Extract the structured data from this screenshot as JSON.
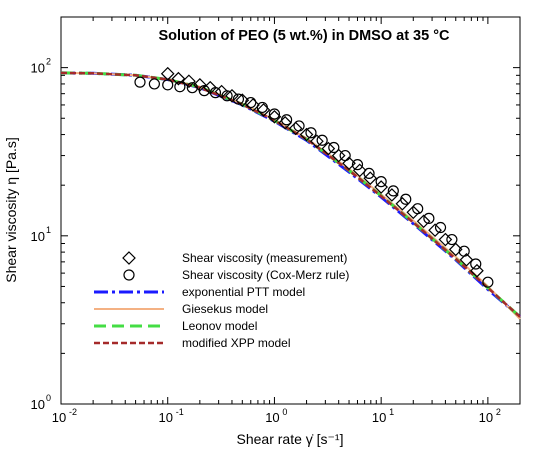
{
  "chart_data": {
    "type": "scatter",
    "title": "Solution of PEO (5 wt.%) in DMSO at 35 °C",
    "xlabel": "Shear rate γ̇ [s⁻¹]",
    "ylabel": "Shear viscosity η [Pa.s]",
    "x_scale": "log",
    "y_scale": "log",
    "xlim": [
      0.01,
      200
    ],
    "ylim": [
      1,
      200
    ],
    "x_ticks": [
      0.01,
      0.1,
      1,
      10,
      100
    ],
    "x_tick_labels": [
      "10",
      "10",
      "10",
      "10",
      "10"
    ],
    "x_tick_exponents": [
      "-2",
      "-1",
      "0",
      "1",
      "2"
    ],
    "y_ticks": [
      1,
      10,
      100
    ],
    "y_tick_labels": [
      "10",
      "10",
      "10"
    ],
    "y_tick_exponents": [
      "0",
      "1",
      "2"
    ],
    "grid": false,
    "legend_position": "bottom-left",
    "series": [
      {
        "name": "Shear viscosity (measurement)",
        "kind": "marker",
        "marker": "diamond",
        "color": "#000000",
        "points": [
          [
            0.1,
            92
          ],
          [
            0.126,
            86
          ],
          [
            0.158,
            83
          ],
          [
            0.2,
            79
          ],
          [
            0.25,
            76
          ],
          [
            0.32,
            72
          ],
          [
            0.4,
            68
          ],
          [
            0.5,
            64
          ],
          [
            0.63,
            60
          ],
          [
            0.79,
            56
          ],
          [
            1.0,
            51
          ],
          [
            1.26,
            47
          ],
          [
            1.58,
            43.5
          ],
          [
            2.0,
            40
          ],
          [
            2.5,
            36.5
          ],
          [
            3.2,
            33
          ],
          [
            4.0,
            30
          ],
          [
            5.0,
            27
          ],
          [
            6.3,
            24.5
          ],
          [
            7.9,
            22
          ],
          [
            10,
            19.5
          ],
          [
            12.6,
            17.5
          ],
          [
            15.8,
            15.5
          ],
          [
            20,
            13.8
          ],
          [
            25,
            12.2
          ],
          [
            32,
            10.8
          ],
          [
            40,
            9.5
          ],
          [
            50,
            8.3
          ],
          [
            63,
            7.2
          ],
          [
            79,
            6.2
          ]
        ]
      },
      {
        "name": "Shear viscosity (Cox-Merz rule)",
        "kind": "marker",
        "marker": "circle",
        "color": "#000000",
        "points": [
          [
            0.055,
            82
          ],
          [
            0.075,
            80
          ],
          [
            0.1,
            79
          ],
          [
            0.13,
            77
          ],
          [
            0.17,
            76
          ],
          [
            0.22,
            73
          ],
          [
            0.28,
            71
          ],
          [
            0.36,
            68
          ],
          [
            0.46,
            65
          ],
          [
            0.6,
            62
          ],
          [
            0.77,
            58
          ],
          [
            1.0,
            53
          ],
          [
            1.3,
            49
          ],
          [
            1.7,
            45
          ],
          [
            2.2,
            41
          ],
          [
            2.8,
            37
          ],
          [
            3.6,
            33.5
          ],
          [
            4.6,
            30
          ],
          [
            6.0,
            26.5
          ],
          [
            7.7,
            23.5
          ],
          [
            10,
            21
          ],
          [
            13,
            18.5
          ],
          [
            17,
            16.5
          ],
          [
            22,
            14.5
          ],
          [
            28,
            12.7
          ],
          [
            36,
            11.2
          ],
          [
            46,
            9.5
          ],
          [
            60,
            8.1
          ],
          [
            77,
            6.8
          ],
          [
            100,
            5.3
          ]
        ]
      },
      {
        "name": "exponential PTT model",
        "kind": "line",
        "color": "#1a1aff",
        "dash": "14,4,3,4",
        "width": 3,
        "x": [
          0.01,
          0.02,
          0.05,
          0.1,
          0.2,
          0.5,
          1,
          2,
          5,
          10,
          20,
          50,
          100,
          200
        ],
        "y": [
          93,
          92.5,
          90,
          85,
          76,
          60,
          48,
          37,
          24,
          17,
          11.8,
          7.2,
          4.8,
          3.3
        ]
      },
      {
        "name": "Giesekus model",
        "kind": "line",
        "color": "#f4b183",
        "dash": "",
        "width": 2,
        "x": [
          0.01,
          0.02,
          0.05,
          0.1,
          0.2,
          0.5,
          1,
          2,
          5,
          10,
          20,
          50,
          100,
          200
        ],
        "y": [
          93,
          92.5,
          90,
          85.5,
          77,
          61,
          49,
          38,
          25,
          17.6,
          12.3,
          7.5,
          5.0,
          3.2
        ]
      },
      {
        "name": "Leonov model",
        "kind": "line",
        "color": "#44dd44",
        "dash": "12,6",
        "width": 3,
        "x": [
          0.01,
          0.02,
          0.05,
          0.1,
          0.2,
          0.5,
          1,
          2,
          5,
          10,
          20,
          50,
          100,
          200
        ],
        "y": [
          93,
          92.5,
          90,
          85,
          76.5,
          60.5,
          48.5,
          37.5,
          24.5,
          17.3,
          12,
          7.3,
          4.9,
          3.3
        ]
      },
      {
        "name": "modified XPP model",
        "kind": "line",
        "color": "#a52a2a",
        "dash": "6,3",
        "width": 2.5,
        "x": [
          0.01,
          0.02,
          0.05,
          0.1,
          0.2,
          0.5,
          1,
          2,
          5,
          10,
          20,
          50,
          100,
          200
        ],
        "y": [
          93,
          92.5,
          90,
          85,
          76,
          60.5,
          48.5,
          37.5,
          24.5,
          17.2,
          12,
          7.3,
          4.9,
          3.3
        ]
      }
    ]
  }
}
